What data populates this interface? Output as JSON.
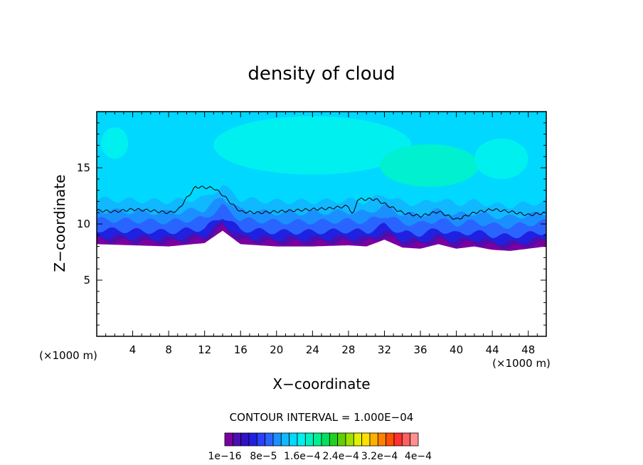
{
  "chart_data": {
    "type": "heatmap",
    "title": "density of cloud",
    "xlabel": "X−coordinate",
    "ylabel": "Z−coordinate",
    "x_unit_left": "(×1000 m)",
    "x_unit_right": "(×1000 m)",
    "xlim": [
      0,
      50
    ],
    "ylim": [
      0,
      20
    ],
    "xticks": [
      4,
      8,
      12,
      16,
      20,
      24,
      28,
      32,
      36,
      40,
      44,
      48
    ],
    "yticks": [
      5,
      10,
      15
    ],
    "cloud_base_z": [
      [
        0,
        8.2
      ],
      [
        4,
        8.1
      ],
      [
        8,
        8.0
      ],
      [
        12,
        8.3
      ],
      [
        14,
        9.4
      ],
      [
        16,
        8.2
      ],
      [
        20,
        8.0
      ],
      [
        24,
        8.0
      ],
      [
        28,
        8.1
      ],
      [
        30,
        8.0
      ],
      [
        32,
        8.6
      ],
      [
        34,
        7.9
      ],
      [
        36,
        7.8
      ],
      [
        38,
        8.2
      ],
      [
        40,
        7.8
      ],
      [
        42,
        8.0
      ],
      [
        44,
        7.7
      ],
      [
        46,
        7.6
      ],
      [
        48,
        7.8
      ],
      [
        50,
        8.0
      ]
    ],
    "contour_line_z": [
      [
        0,
        11.2
      ],
      [
        2,
        11.1
      ],
      [
        4,
        11.3
      ],
      [
        6,
        11.2
      ],
      [
        8,
        11.0
      ],
      [
        9,
        11.2
      ],
      [
        10,
        12.3
      ],
      [
        11,
        13.3
      ],
      [
        13,
        13.2
      ],
      [
        14,
        12.6
      ],
      [
        15,
        11.8
      ],
      [
        16,
        11.1
      ],
      [
        18,
        11.0
      ],
      [
        22,
        11.2
      ],
      [
        26,
        11.4
      ],
      [
        28,
        11.6
      ],
      [
        28.5,
        10.7
      ],
      [
        29,
        12.2
      ],
      [
        31,
        12.2
      ],
      [
        34,
        11.0
      ],
      [
        36,
        10.7
      ],
      [
        38,
        11.1
      ],
      [
        40,
        10.4
      ],
      [
        42,
        11.0
      ],
      [
        44,
        11.3
      ],
      [
        46,
        11.1
      ],
      [
        48,
        10.8
      ],
      [
        50,
        11.0
      ]
    ],
    "colorbar": {
      "colors": [
        "#7a00a0",
        "#4b0fb0",
        "#3010c8",
        "#2020e0",
        "#2a40ff",
        "#2a64ff",
        "#1a90ff",
        "#10b8ff",
        "#00d8ff",
        "#00f0f0",
        "#00f0c0",
        "#00f090",
        "#00e060",
        "#20d020",
        "#60d000",
        "#a0e000",
        "#e0f000",
        "#ffe000",
        "#ffb000",
        "#ff8000",
        "#ff5000",
        "#ff3030",
        "#ff6060",
        "#ff9090"
      ],
      "labels": [
        "1e−16",
        "8e−5",
        "1.6e−4",
        "2.4e−4",
        "3.2e−4",
        "4e−4"
      ],
      "contour_interval": "CONTOUR INTERVAL = 1.000E−04"
    }
  }
}
